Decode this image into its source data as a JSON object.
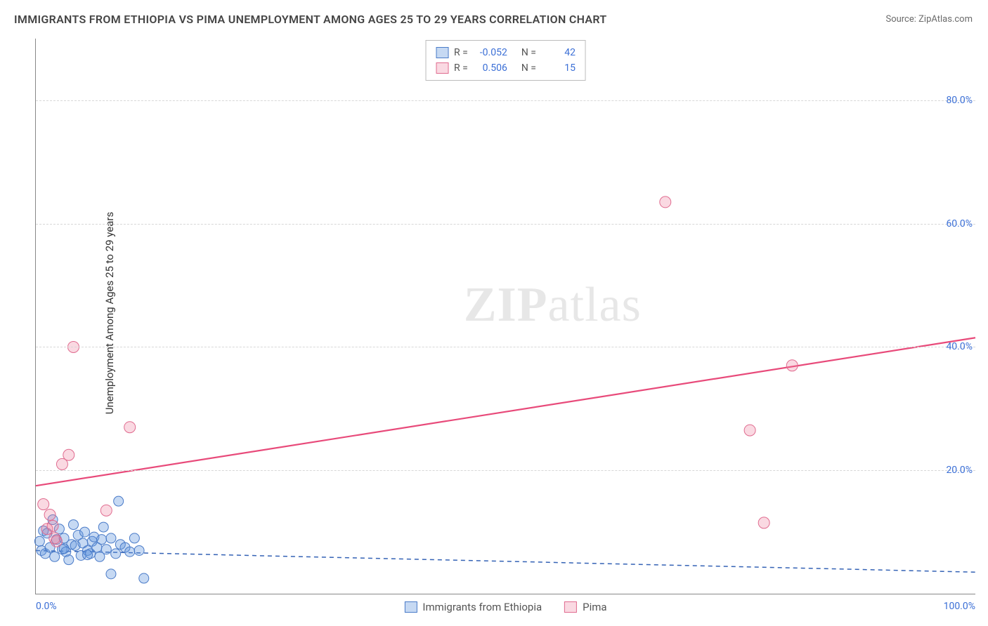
{
  "title": "IMMIGRANTS FROM ETHIOPIA VS PIMA UNEMPLOYMENT AMONG AGES 25 TO 29 YEARS CORRELATION CHART",
  "source": "Source: ZipAtlas.com",
  "ylabel": "Unemployment Among Ages 25 to 29 years",
  "watermark_bold": "ZIP",
  "watermark_rest": "atlas",
  "chart": {
    "type": "scatter",
    "xlim": [
      0,
      100
    ],
    "ylim": [
      0,
      90
    ],
    "x_ticks": [
      {
        "value": 0,
        "label": "0.0%",
        "anchor": "left"
      },
      {
        "value": 100,
        "label": "100.0%",
        "anchor": "right"
      }
    ],
    "y_ticks": [
      {
        "value": 20,
        "label": "20.0%"
      },
      {
        "value": 40,
        "label": "40.0%"
      },
      {
        "value": 60,
        "label": "60.0%"
      },
      {
        "value": 80,
        "label": "80.0%"
      }
    ],
    "grid_color": "#d7d7d7",
    "axis_color": "#888888",
    "background_color": "#ffffff",
    "series": [
      {
        "id": "ethiopia",
        "name": "Immigrants from Ethiopia",
        "R": "-0.052",
        "N": "42",
        "marker_fill": "rgba(93,146,221,0.35)",
        "marker_stroke": "#4a7bc8",
        "marker_radius": 7,
        "trend_color": "#3462b5",
        "trend_dash": "6,5",
        "trend_width": 1.5,
        "trend": {
          "x1": 0,
          "y1": 7.0,
          "x2": 100,
          "y2": 3.5
        },
        "points": [
          [
            0.4,
            8.5
          ],
          [
            0.6,
            7.0
          ],
          [
            0.8,
            10.2
          ],
          [
            1.0,
            6.5
          ],
          [
            1.2,
            9.8
          ],
          [
            1.5,
            7.5
          ],
          [
            1.8,
            12.0
          ],
          [
            2.0,
            6.0
          ],
          [
            2.2,
            8.8
          ],
          [
            2.5,
            10.5
          ],
          [
            2.8,
            7.2
          ],
          [
            3.0,
            9.0
          ],
          [
            3.2,
            6.8
          ],
          [
            3.5,
            5.5
          ],
          [
            3.8,
            8.0
          ],
          [
            4.0,
            11.2
          ],
          [
            4.2,
            7.8
          ],
          [
            4.5,
            9.5
          ],
          [
            4.8,
            6.2
          ],
          [
            5.0,
            8.2
          ],
          [
            5.2,
            10.0
          ],
          [
            5.5,
            7.0
          ],
          [
            5.8,
            6.5
          ],
          [
            6.0,
            8.5
          ],
          [
            6.2,
            9.2
          ],
          [
            6.5,
            7.5
          ],
          [
            6.8,
            6.0
          ],
          [
            7.0,
            8.8
          ],
          [
            7.2,
            10.8
          ],
          [
            7.5,
            7.2
          ],
          [
            8.0,
            3.2
          ],
          [
            8.0,
            9.0
          ],
          [
            8.5,
            6.5
          ],
          [
            8.8,
            15.0
          ],
          [
            9.0,
            8.0
          ],
          [
            9.5,
            7.5
          ],
          [
            10.0,
            6.8
          ],
          [
            10.5,
            9.0
          ],
          [
            11.0,
            7.0
          ],
          [
            11.5,
            2.5
          ],
          [
            5.5,
            6.3
          ],
          [
            3.0,
            7.3
          ]
        ]
      },
      {
        "id": "pima",
        "name": "Pima",
        "R": "0.506",
        "N": "15",
        "marker_fill": "rgba(238,130,160,0.30)",
        "marker_stroke": "#e06b8f",
        "marker_radius": 8,
        "trend_color": "#e84a7a",
        "trend_dash": "",
        "trend_width": 2.2,
        "trend": {
          "x1": 0,
          "y1": 17.5,
          "x2": 100,
          "y2": 41.5
        },
        "points": [
          [
            0.8,
            14.5
          ],
          [
            1.2,
            10.5
          ],
          [
            1.5,
            12.8
          ],
          [
            2.2,
            8.5
          ],
          [
            2.8,
            21.0
          ],
          [
            3.5,
            22.5
          ],
          [
            4.0,
            40.0
          ],
          [
            7.5,
            13.5
          ],
          [
            10.0,
            27.0
          ],
          [
            67.0,
            63.5
          ],
          [
            76.0,
            26.5
          ],
          [
            77.5,
            11.5
          ],
          [
            80.5,
            37.0
          ],
          [
            2.0,
            9.0
          ],
          [
            1.8,
            11.0
          ]
        ]
      }
    ],
    "stats_legend_labels": {
      "R": "R =",
      "N": "N ="
    },
    "bottom_legend": [
      {
        "series": "ethiopia"
      },
      {
        "series": "pima"
      }
    ]
  }
}
